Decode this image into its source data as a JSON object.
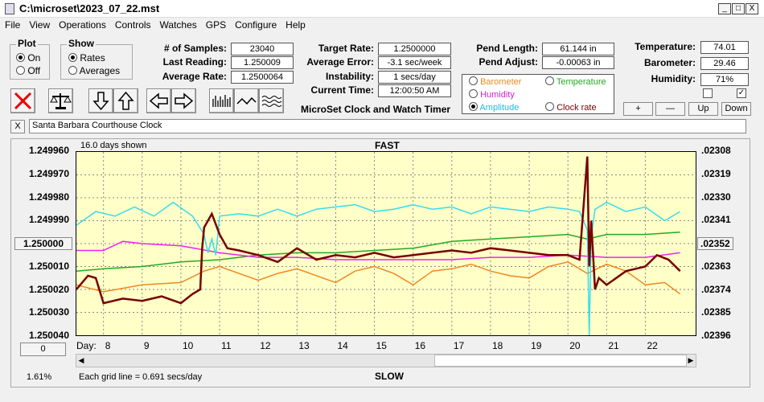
{
  "window": {
    "title": "C:\\microset\\2023_07_22.mst",
    "min": "_",
    "max": "□",
    "close": "X"
  },
  "menu": [
    "File",
    "View",
    "Operations",
    "Controls",
    "Watches",
    "GPS",
    "Configure",
    "Help"
  ],
  "plot_group": {
    "title": "Plot",
    "on": "On",
    "off": "Off"
  },
  "show_group": {
    "title": "Show",
    "rates": "Rates",
    "averages": "Averages"
  },
  "stats": {
    "samples_label": "# of Samples:",
    "samples": "23040",
    "last_label": "Last Reading:",
    "last": "1.250009",
    "avg_label": "Average Rate:",
    "avg": "1.2500064",
    "target_label": "Target Rate:",
    "target": "1.2500000",
    "err_label": "Average Error:",
    "err": "-3.1 sec/week",
    "inst_label": "Instability:",
    "inst": "1 secs/day",
    "time_label": "Current Time:",
    "time": "12:00:50 AM",
    "pendlen_label": "Pend Length:",
    "pendlen": "61.144 in",
    "pendadj_label": "Pend Adjust:",
    "pendadj": "-0.00063 in",
    "temp_label": "Temperature:",
    "temp": "74.01",
    "baro_label": "Barometer:",
    "baro": "29.46",
    "hum_label": "Humidity:",
    "hum": "71%"
  },
  "app_caption": "MicroSet Clock and Watch Timer",
  "series_selector": {
    "barometer": "Barometer",
    "temperature": "Temperature",
    "humidity": "Humidity",
    "amplitude": "Amplitude",
    "clockrate": "Clock rate"
  },
  "small_buttons": {
    "plus": "+",
    "minus": "—",
    "up": "Up",
    "down": "Down"
  },
  "clock_name": "Santa Barbara Courthouse Clock",
  "clear_label": "X",
  "chart_header": {
    "days_shown": "16.0 days shown",
    "fast": "FAST",
    "slow": "SLOW"
  },
  "footer": {
    "percent": "1.61%",
    "grid_note": "Each grid line = 0.691 secs/day",
    "zero_btn": "0",
    "day_label": "Day:"
  },
  "colors": {
    "amplitude": "#33ddee",
    "temperature": "#22aa22",
    "humidity": "#ee22ee",
    "barometer": "#ee8822",
    "rate": "#770000"
  },
  "chart_data": {
    "type": "line",
    "left_ticks": [
      "1.249960",
      "1.249970",
      "1.249980",
      "1.249990",
      "1.250000",
      "1.250010",
      "1.250020",
      "1.250030",
      "1.250040"
    ],
    "left_ylim": [
      1.24996,
      1.25004
    ],
    "right_ticks": [
      ".02308",
      ".02319",
      ".02330",
      ".02341",
      ".02352",
      ".02363",
      ".02374",
      ".02385",
      ".02396"
    ],
    "x_days": [
      8,
      9,
      10,
      11,
      12,
      13,
      14,
      15,
      16,
      17,
      18,
      19,
      20,
      21,
      22
    ],
    "xlim": [
      7.3,
      23.3
    ],
    "series": [
      {
        "name": "Clock rate",
        "color": "#770000",
        "x": [
          7.3,
          7.6,
          7.8,
          8.0,
          8.5,
          9.0,
          9.5,
          10.0,
          10.3,
          10.5,
          10.55,
          10.6,
          10.8,
          11.0,
          11.2,
          11.5,
          12.0,
          12.5,
          13.0,
          13.5,
          14.0,
          14.5,
          15.0,
          15.5,
          16.0,
          16.5,
          17.0,
          17.5,
          18.0,
          18.5,
          19.0,
          19.5,
          20.0,
          20.3,
          20.5,
          20.55,
          20.6,
          20.7,
          20.8,
          21.0,
          21.5,
          22.0,
          22.3,
          22.6,
          22.9
        ],
        "y": [
          1.25002,
          1.250014,
          1.250015,
          1.250026,
          1.250024,
          1.250025,
          1.250023,
          1.250026,
          1.250022,
          1.25002,
          1.250002,
          1.249993,
          1.249987,
          1.249996,
          1.250002,
          1.250003,
          1.250005,
          1.250008,
          1.250002,
          1.250007,
          1.250005,
          1.250006,
          1.250004,
          1.250006,
          1.250005,
          1.250004,
          1.250003,
          1.250004,
          1.250002,
          1.250003,
          1.250004,
          1.250005,
          1.250005,
          1.250007,
          1.249962,
          1.25001,
          1.24999,
          1.25002,
          1.250015,
          1.250018,
          1.250012,
          1.25001,
          1.250005,
          1.250007,
          1.250012
        ]
      },
      {
        "name": "Amplitude",
        "color": "#33ddee",
        "x": [
          7.3,
          7.8,
          8.3,
          8.8,
          9.3,
          9.8,
          10.3,
          10.6,
          10.7,
          10.8,
          10.9,
          11.0,
          11.5,
          12.0,
          12.5,
          13.0,
          13.5,
          14.0,
          14.5,
          15.0,
          15.5,
          16.0,
          16.5,
          17.0,
          17.5,
          18.0,
          18.5,
          19.0,
          19.5,
          20.0,
          20.3,
          20.5,
          20.55,
          20.6,
          20.7,
          21.0,
          21.5,
          22.0,
          22.5,
          22.9
        ],
        "y": [
          1.249992,
          1.249986,
          1.249988,
          1.249984,
          1.249988,
          1.249982,
          1.249988,
          1.249996,
          1.250004,
          1.249998,
          1.250005,
          1.249988,
          1.249987,
          1.249988,
          1.249985,
          1.249988,
          1.249985,
          1.249984,
          1.249983,
          1.249986,
          1.249985,
          1.249983,
          1.249985,
          1.249984,
          1.249987,
          1.249984,
          1.249985,
          1.249986,
          1.249984,
          1.249985,
          1.249986,
          1.249994,
          1.25004,
          1.249997,
          1.249985,
          1.249982,
          1.249986,
          1.249984,
          1.24999,
          1.249986
        ]
      },
      {
        "name": "Temperature",
        "color": "#22aa22",
        "x": [
          7.3,
          8.0,
          9.0,
          10.0,
          11.0,
          12.0,
          13.0,
          14.0,
          15.0,
          16.0,
          17.0,
          18.0,
          19.0,
          20.0,
          20.5,
          21.0,
          22.0,
          22.9
        ],
        "y": [
          1.250012,
          1.250011,
          1.25001,
          1.250008,
          1.250007,
          1.250005,
          1.250004,
          1.250004,
          1.250003,
          1.250002,
          1.249999,
          1.249998,
          1.249997,
          1.249996,
          1.249998,
          1.249996,
          1.249996,
          1.249995
        ]
      },
      {
        "name": "Humidity",
        "color": "#ee22ee",
        "x": [
          7.3,
          8.0,
          8.5,
          9.0,
          10.0,
          11.0,
          12.0,
          13.0,
          14.0,
          15.0,
          16.0,
          17.0,
          18.0,
          19.0,
          20.0,
          21.0,
          22.0,
          22.9
        ],
        "y": [
          1.250003,
          1.250003,
          1.249999,
          1.25,
          1.250001,
          1.250004,
          1.250006,
          1.250006,
          1.250007,
          1.250007,
          1.250007,
          1.250007,
          1.250006,
          1.250006,
          1.250005,
          1.250006,
          1.250006,
          1.250004
        ]
      },
      {
        "name": "Barometer",
        "color": "#ee8822",
        "x": [
          7.3,
          8.0,
          9.0,
          10.0,
          10.6,
          11.0,
          12.0,
          12.5,
          13.0,
          13.5,
          14.0,
          14.5,
          15.0,
          15.5,
          16.0,
          16.5,
          17.0,
          17.5,
          18.0,
          18.5,
          19.0,
          19.5,
          20.0,
          20.5,
          21.0,
          21.5,
          22.0,
          22.5,
          22.9
        ],
        "y": [
          1.250018,
          1.250021,
          1.250018,
          1.250017,
          1.250012,
          1.25001,
          1.250016,
          1.250013,
          1.250011,
          1.250014,
          1.250017,
          1.250012,
          1.25001,
          1.250013,
          1.250018,
          1.250012,
          1.250011,
          1.250009,
          1.250012,
          1.250014,
          1.250015,
          1.25001,
          1.250008,
          1.250013,
          1.250009,
          1.250012,
          1.250018,
          1.250017,
          1.250022
        ]
      }
    ]
  }
}
